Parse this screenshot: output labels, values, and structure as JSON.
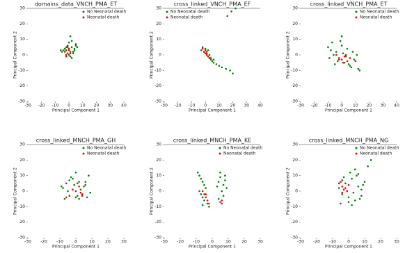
{
  "chart_data": [
    {
      "type": "scatter",
      "title": "domains_data_VNCH_PMA_ET",
      "x_label": "Principal Component 1",
      "y_label": "Principal Component 2",
      "xlim": [
        -30,
        40
      ],
      "xticks": [
        -30,
        -20,
        -10,
        0,
        10,
        20,
        30,
        40
      ],
      "ylim": [
        -30,
        30
      ],
      "yticks": [
        -30,
        -20,
        -10,
        0,
        10,
        20,
        30
      ],
      "legend": "upper right",
      "series": [
        {
          "name": "No Neonatal death",
          "color": "green",
          "x": [
            -5,
            -3,
            -1,
            0,
            1,
            2,
            3,
            4,
            5,
            -4,
            -2,
            0,
            2,
            4,
            6,
            1,
            -1,
            3,
            2,
            0,
            -6,
            5,
            3,
            1,
            -2
          ],
          "values": [
            2,
            4,
            6,
            3,
            1,
            5,
            2,
            4,
            6,
            3,
            0,
            8,
            9,
            3,
            5,
            12,
            1,
            2,
            -2,
            4,
            3,
            7,
            1,
            -1,
            5
          ]
        },
        {
          "name": "Neonatal death",
          "color": "red",
          "x": [
            -2,
            -1,
            0,
            -3,
            1,
            -1,
            0,
            -2
          ],
          "values": [
            3,
            1,
            4,
            2,
            2,
            5,
            0,
            -1
          ]
        }
      ]
    },
    {
      "type": "scatter",
      "title": "cross_linked_VNCH_PMA_EF",
      "x_label": "Principal Component 1",
      "y_label": "Principal Component 2",
      "xlim": [
        -30,
        40
      ],
      "xticks": [
        -30,
        -20,
        -10,
        0,
        10,
        20,
        30,
        40
      ],
      "ylim": [
        -30,
        30
      ],
      "yticks": [
        -30,
        -20,
        -10,
        0,
        10,
        20,
        30
      ],
      "legend": "upper left",
      "series": [
        {
          "name": "No Neonatal death",
          "color": "green",
          "x": [
            -3,
            -1,
            0,
            1,
            2,
            3,
            4,
            5,
            6,
            8,
            10,
            12,
            15,
            18,
            20,
            2,
            0,
            -2,
            4,
            6,
            16,
            19,
            22,
            1,
            3
          ],
          "values": [
            3,
            2,
            1,
            0,
            -1,
            -2,
            -3,
            -4,
            -5,
            -6,
            -7,
            -8,
            -9,
            -10,
            -12,
            3,
            4,
            5,
            -2,
            -3,
            25,
            28,
            30,
            2,
            0
          ]
        },
        {
          "name": "Neonatal death",
          "color": "red",
          "x": [
            -1,
            0,
            1,
            2,
            3,
            0,
            -2,
            1
          ],
          "values": [
            2,
            1,
            0,
            -1,
            -2,
            3,
            4,
            1
          ]
        }
      ]
    },
    {
      "type": "scatter",
      "title": "cross_linked_VNCH_PMA_ET",
      "x_label": "Principal Component 1",
      "y_label": "Principal Component 2",
      "xlim": [
        -30,
        40
      ],
      "xticks": [
        -30,
        -20,
        -10,
        0,
        10,
        20,
        30,
        40
      ],
      "ylim": [
        -30,
        30
      ],
      "yticks": [
        -30,
        -20,
        -10,
        0,
        10,
        20,
        30
      ],
      "legend": "upper right",
      "series": [
        {
          "name": "No Neonatal death",
          "color": "green",
          "x": [
            -10,
            -8,
            -6,
            -4,
            -2,
            0,
            2,
            4,
            6,
            8,
            10,
            12,
            -9,
            -5,
            -1,
            3,
            7,
            11,
            -7,
            -3,
            1,
            5,
            9,
            13,
            0
          ],
          "values": [
            5,
            3,
            0,
            2,
            -3,
            6,
            -5,
            4,
            -7,
            2,
            -4,
            -9,
            -2,
            -6,
            9,
            -1,
            -8,
            0,
            8,
            -4,
            1,
            -6,
            -3,
            -10,
            12
          ]
        },
        {
          "name": "Neonatal death",
          "color": "red",
          "x": [
            -2,
            0,
            2,
            4,
            -4,
            1,
            3,
            6
          ],
          "values": [
            -2,
            -3,
            -1,
            -4,
            0,
            -5,
            0,
            -2
          ]
        }
      ]
    },
    {
      "type": "scatter",
      "title": "cross_linked_MNCH_PMA_GH",
      "x_label": "Principal Component 1",
      "y_label": "Principal Component 2",
      "xlim": [
        -30,
        30
      ],
      "xticks": [
        -30,
        -20,
        -10,
        0,
        10,
        20,
        30
      ],
      "ylim": [
        -30,
        30
      ],
      "yticks": [
        -30,
        -20,
        -10,
        0,
        10,
        20,
        30
      ],
      "legend": "upper right",
      "series": [
        {
          "name": "No Neonatal death",
          "color": "green",
          "x": [
            -8,
            -6,
            -4,
            -2,
            0,
            2,
            4,
            6,
            8,
            -7,
            -3,
            1,
            5,
            -5,
            3,
            7,
            -1,
            9,
            -9,
            0,
            4,
            -2,
            6,
            2,
            -4
          ],
          "values": [
            2,
            5,
            -3,
            8,
            -4,
            6,
            -2,
            4,
            10,
            -5,
            9,
            -3,
            3,
            0,
            1,
            -4,
            4,
            -1,
            3,
            12,
            -3,
            1,
            6,
            -5,
            7
          ]
        },
        {
          "name": "Neonatal death",
          "color": "red",
          "x": [
            -4,
            -2,
            0,
            2,
            4,
            -6,
            1,
            3
          ],
          "values": [
            -3,
            1,
            0,
            3,
            -2,
            -4,
            5,
            -1
          ]
        }
      ]
    },
    {
      "type": "scatter",
      "title": "cross_linked_MNCH_PMA_KE",
      "x_label": "Principal Component 1",
      "y_label": "Principal Component 2",
      "xlim": [
        -30,
        30
      ],
      "xticks": [
        -30,
        -20,
        -10,
        0,
        10,
        20,
        30
      ],
      "ylim": [
        -30,
        30
      ],
      "yticks": [
        -30,
        -20,
        -10,
        0,
        10,
        20,
        30
      ],
      "legend": "upper right",
      "series": [
        {
          "name": "No Neonatal death",
          "color": "green",
          "x": [
            -9,
            -8,
            -7,
            -6,
            -5,
            -4,
            -8,
            -7,
            -6,
            -5,
            -3,
            -2,
            3,
            4,
            5,
            6,
            7,
            8,
            9,
            4,
            6,
            8,
            5,
            7,
            -6
          ],
          "values": [
            12,
            10,
            8,
            6,
            4,
            2,
            0,
            -2,
            -4,
            -6,
            -8,
            -10,
            3,
            6,
            9,
            0,
            4,
            7,
            2,
            -5,
            -8,
            10,
            12,
            -3,
            -9
          ]
        },
        {
          "name": "Neonatal death",
          "color": "red",
          "x": [
            -4,
            -3,
            -2,
            -5,
            -6,
            5,
            6,
            -4
          ],
          "values": [
            -4,
            -6,
            -8,
            -2,
            0,
            -7,
            -6,
            -2
          ]
        }
      ]
    },
    {
      "type": "scatter",
      "title": "cross_linked_MNCH_PMA_NG",
      "x_label": "Principal Component 1",
      "y_label": "Principal Component 2",
      "xlim": [
        -30,
        30
      ],
      "xticks": [
        -30,
        -20,
        -10,
        0,
        10,
        20,
        30
      ],
      "ylim": [
        -30,
        30
      ],
      "yticks": [
        -30,
        -20,
        -10,
        0,
        10,
        20,
        30
      ],
      "legend": "upper right",
      "series": [
        {
          "name": "No Neonatal death",
          "color": "green",
          "x": [
            -6,
            -4,
            -2,
            0,
            2,
            4,
            6,
            8,
            10,
            -5,
            -3,
            -1,
            1,
            3,
            5,
            7,
            9,
            -4,
            0,
            4,
            8,
            2,
            6,
            12,
            14
          ],
          "values": [
            2,
            -2,
            5,
            -4,
            8,
            -6,
            3,
            -3,
            6,
            -8,
            9,
            0,
            12,
            -1,
            10,
            -5,
            4,
            7,
            -7,
            14,
            1,
            -9,
            11,
            16,
            20
          ]
        },
        {
          "name": "Neonatal death",
          "color": "red",
          "x": [
            -6,
            -4,
            -3,
            -5,
            -2,
            -4,
            0,
            -1
          ],
          "values": [
            5,
            3,
            1,
            6,
            2,
            -1,
            4,
            0
          ]
        }
      ]
    }
  ]
}
